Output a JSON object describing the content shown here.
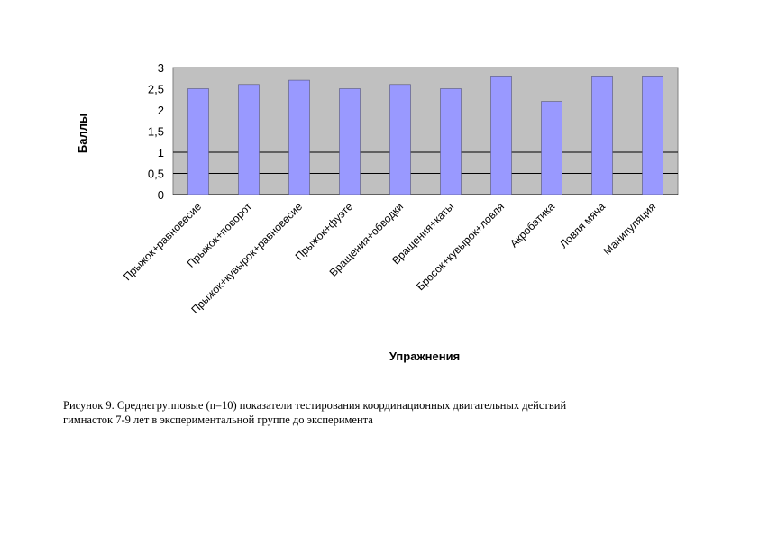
{
  "chart_data": {
    "type": "bar",
    "categories": [
      "Прыжок+равновесие",
      "Прыжок+поворот",
      "Прыжок+кувырок+равновесие",
      "Прыжок+фуэте",
      "Вращения+обводки",
      "Вращения+каты",
      "Бросок+кувырок+ловля",
      "Акробатика",
      "Ловля мяча",
      "Манипуляция"
    ],
    "values": [
      2.5,
      2.6,
      2.7,
      2.5,
      2.6,
      2.5,
      2.8,
      2.2,
      2.8,
      2.8
    ],
    "xlabel": "Упражнения",
    "ylabel": "Баллы",
    "ylim": [
      0,
      3
    ],
    "yticks": [
      "0",
      "0,5",
      "1",
      "1,5",
      "2",
      "2,5",
      "3"
    ],
    "grid": true,
    "legend": "none",
    "colors": {
      "bar": "#9999ff",
      "plot_background": "#c0c0c0",
      "gridline": "#000000"
    }
  },
  "caption": {
    "line1": "Рисунок 9. Среднегрупповые (n=10) показатели тестирования координационных двигательных действий",
    "line2": "гимнасток 7-9 лет в экспериментальной  группе до эксперимента"
  }
}
